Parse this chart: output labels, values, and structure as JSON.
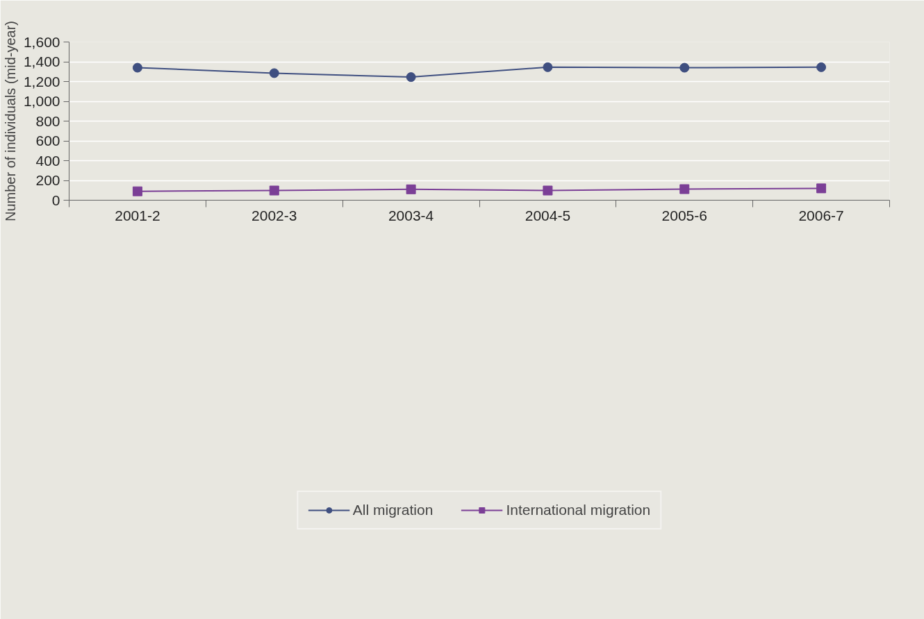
{
  "chart_data": {
    "type": "line",
    "ylabel": "Number of individuals (mid-year)",
    "categories": [
      "2001-2",
      "2002-3",
      "2003-4",
      "2004-5",
      "2005-6",
      "2006-7"
    ],
    "series": [
      {
        "name": "All migration",
        "color": "#3f4f80",
        "marker": "circle",
        "values": [
          1340,
          1285,
          1245,
          1345,
          1340,
          1345
        ]
      },
      {
        "name": "International migration",
        "color": "#7b3f96",
        "marker": "square",
        "values": [
          90,
          98,
          110,
          98,
          112,
          120
        ]
      }
    ],
    "ylim": [
      0,
      1600
    ],
    "yticks": [
      0,
      {
        "value": 200,
        "label": "200"
      },
      {
        "value": 400,
        "label": "400"
      },
      {
        "value": 600,
        "label": "600"
      },
      {
        "value": 800,
        "label": "800"
      },
      {
        "value": 1000,
        "label": "1,000"
      },
      {
        "value": 1200,
        "label": "1,200"
      },
      {
        "value": 1400,
        "label": "1,400"
      },
      {
        "value": 1600,
        "label": "1,600"
      }
    ],
    "grid": "y",
    "legend": "bottom",
    "line_style": "solid"
  }
}
